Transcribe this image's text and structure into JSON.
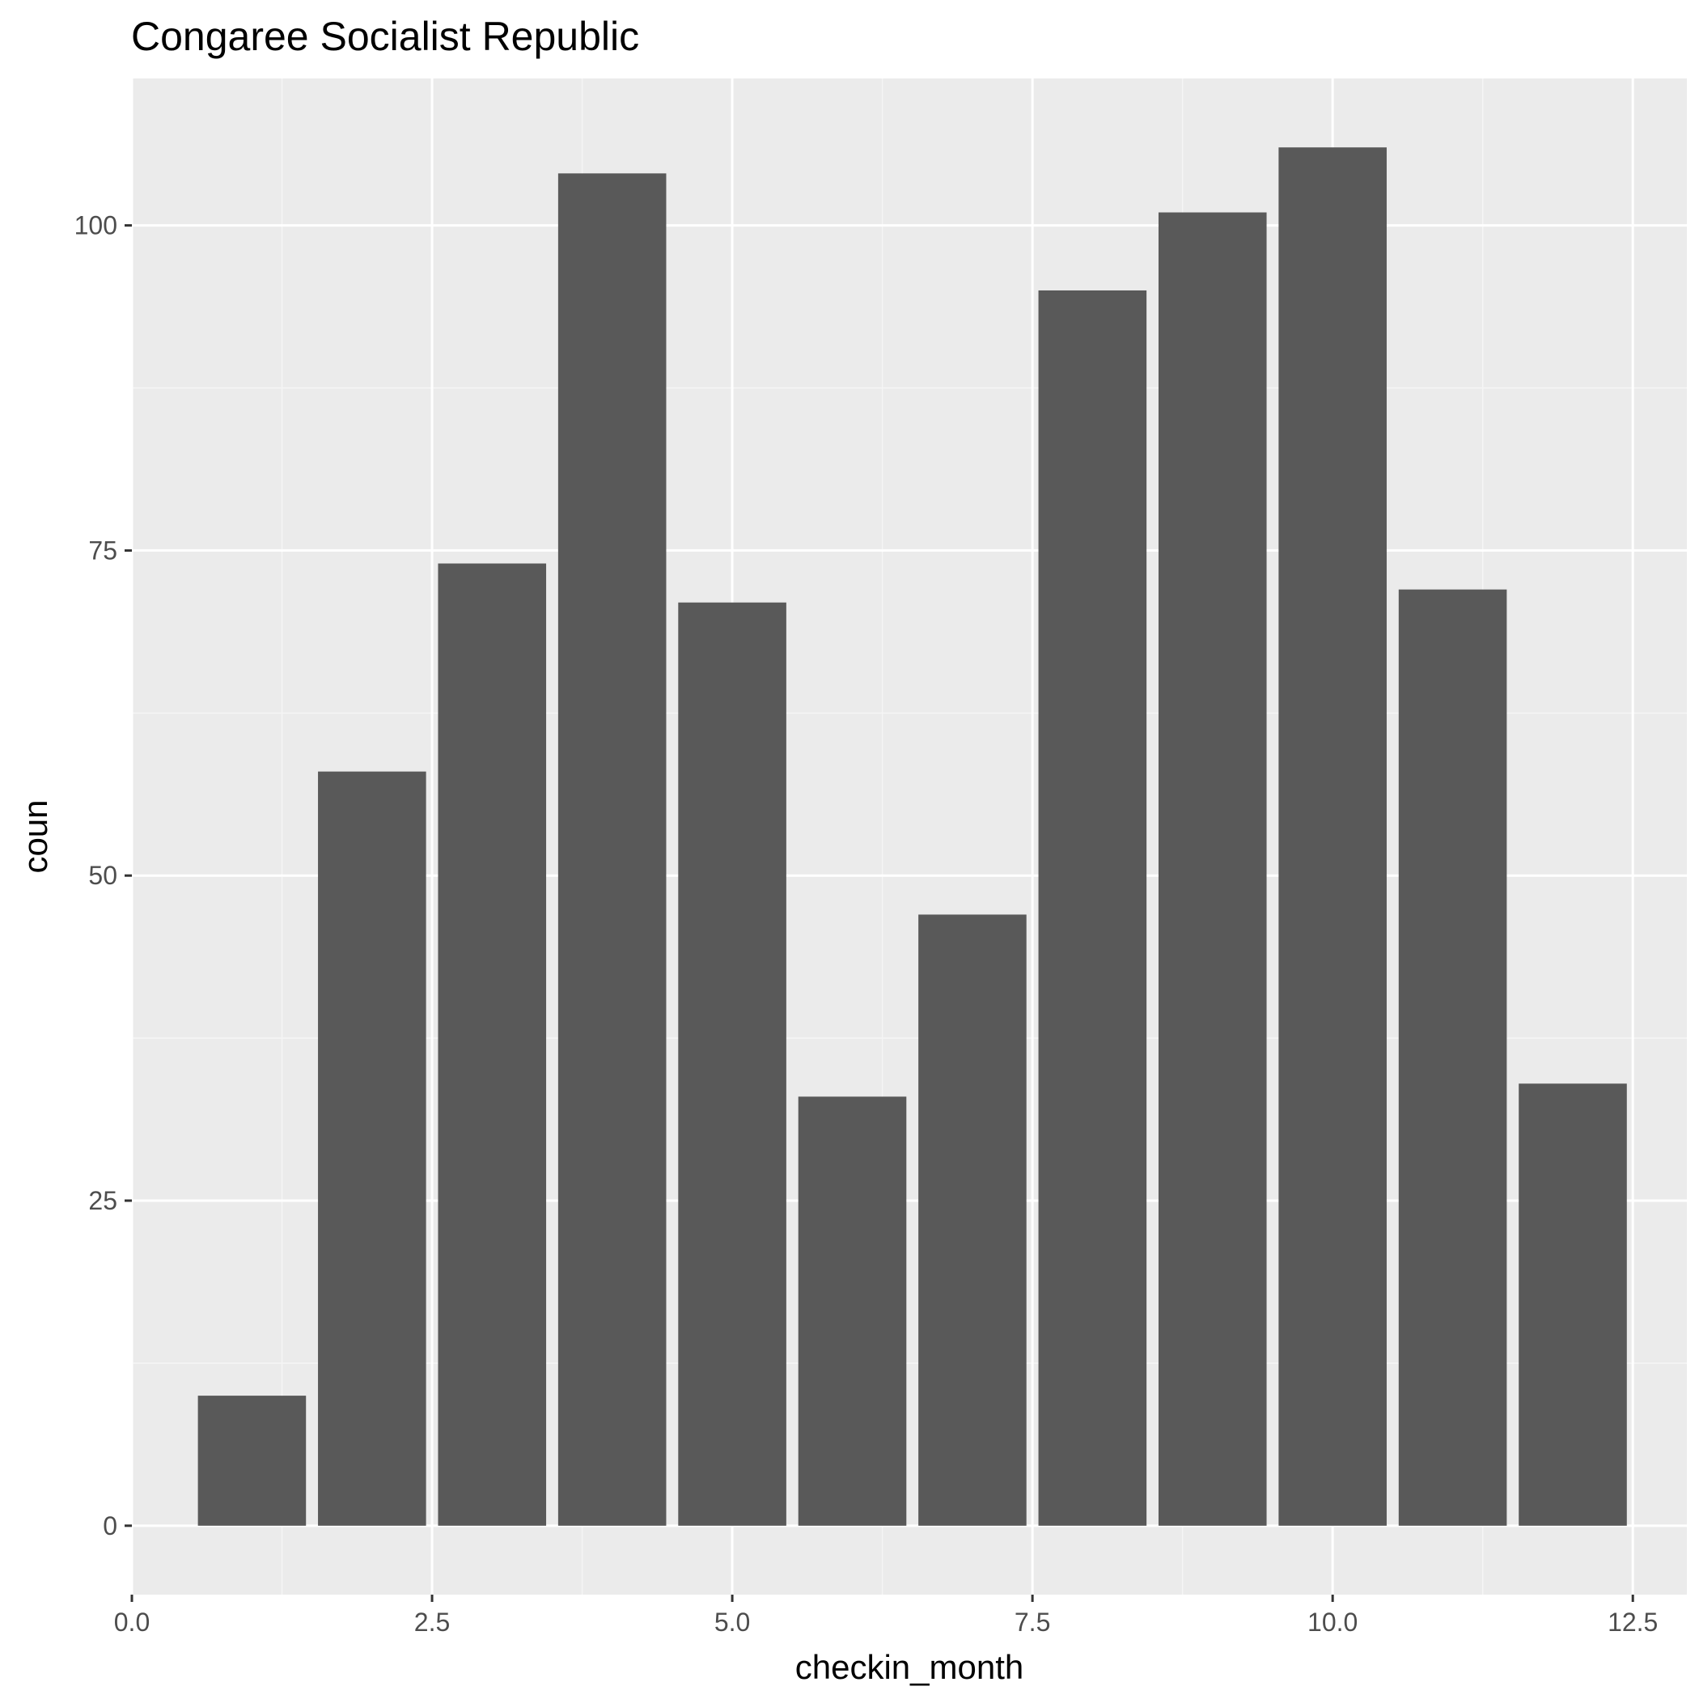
{
  "chart_data": {
    "type": "bar",
    "title": "Congaree Socialist Republic",
    "xlabel": "checkin_month",
    "ylabel": "coun",
    "x": [
      1,
      2,
      3,
      4,
      5,
      6,
      7,
      8,
      9,
      10,
      11,
      12
    ],
    "values": [
      10,
      58,
      74,
      104,
      71,
      33,
      47,
      95,
      101,
      106,
      72,
      34
    ],
    "bar_width": 0.9,
    "xlim": [
      0.0,
      12.95
    ],
    "ylim": [
      -5.3,
      111.3
    ],
    "x_ticks": [
      0.0,
      2.5,
      5.0,
      7.5,
      10.0,
      12.5
    ],
    "x_tick_labels": [
      "0.0",
      "2.5",
      "5.0",
      "7.5",
      "10.0",
      "12.5"
    ],
    "y_ticks": [
      0,
      25,
      50,
      75,
      100
    ],
    "y_tick_labels": [
      "0",
      "25",
      "50",
      "75",
      "100"
    ],
    "grid": true,
    "colors": {
      "bar": "#595959",
      "panel_background": "#ebebeb",
      "grid_major": "#ffffff",
      "grid_minor": "#f5f5f5"
    }
  }
}
